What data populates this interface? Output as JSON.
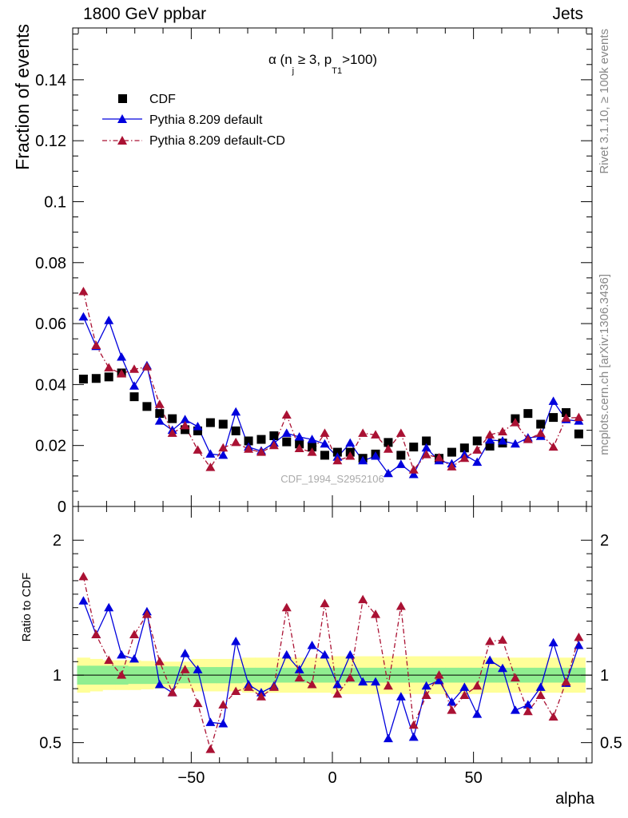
{
  "header": {
    "left": "1800 GeV ppbar",
    "right": "Jets"
  },
  "side_labels": {
    "rivet": "Rivet 3.1.10, ≥ 100k events",
    "mcplots": "mcplots.cern.ch [arXiv:1306.3436]"
  },
  "watermark": "CDF_1994_S2952106",
  "main_title": {
    "prefix": "α (n",
    "sub_j": "j",
    "mid": " ≥ 3, p",
    "sub_t1": "T1",
    "suffix": ">100)"
  },
  "legend": [
    "CDF",
    "Pythia 8.209 default",
    "Pythia 8.209 default-CD"
  ],
  "colors": {
    "data": "#000000",
    "default": "#0000dd",
    "cd": "#aa1133",
    "band_inner": "#90ee90",
    "band_outer": "#ffff99"
  },
  "chart_data": [
    {
      "type": "scatter",
      "panel": "main",
      "ylabel": "Fraction of events",
      "xlim": [
        -92,
        92
      ],
      "ylim": [
        0,
        0.157
      ],
      "yticks": [
        0,
        0.02,
        0.04,
        0.06,
        0.08,
        0.1,
        0.12,
        0.14
      ],
      "ytick_labels": [
        "0",
        "0.02",
        "0.04",
        "0.06",
        "0.08",
        "0.1",
        "0.12",
        "0.14"
      ],
      "x": [
        -88.2,
        -83.7,
        -79.2,
        -74.7,
        -70.2,
        -65.7,
        -61.2,
        -56.7,
        -52.2,
        -47.7,
        -43.2,
        -38.7,
        -34.2,
        -29.7,
        -25.2,
        -20.7,
        -16.2,
        -11.7,
        -7.2,
        -2.7,
        1.8,
        6.3,
        10.8,
        15.3,
        19.8,
        24.3,
        28.8,
        33.3,
        37.8,
        42.3,
        46.8,
        51.3,
        55.8,
        60.3,
        64.8,
        69.3,
        73.8,
        78.3,
        82.8,
        87.3
      ],
      "series": [
        {
          "name": "CDF",
          "style": "markers",
          "values": [
            0.0418,
            0.042,
            0.0425,
            0.0438,
            0.036,
            0.0328,
            0.0305,
            0.0288,
            0.0252,
            0.0248,
            0.0275,
            0.027,
            0.0248,
            0.0215,
            0.022,
            0.0232,
            0.0212,
            0.0205,
            0.0195,
            0.0168,
            0.0178,
            0.0178,
            0.0158,
            0.0172,
            0.021,
            0.0168,
            0.0195,
            0.0215,
            0.0158,
            0.0178,
            0.0192,
            0.0215,
            0.0198,
            0.0208,
            0.0288,
            0.0305,
            0.027,
            0.0292,
            0.0308,
            0.0238
          ]
        },
        {
          "name": "Pythia 8.209 default",
          "style": "line",
          "values": [
            0.0622,
            0.0525,
            0.061,
            0.049,
            0.0395,
            0.0462,
            0.028,
            0.025,
            0.0285,
            0.0262,
            0.0172,
            0.0168,
            0.031,
            0.0195,
            0.0182,
            0.0208,
            0.024,
            0.0228,
            0.022,
            0.0205,
            0.0162,
            0.0208,
            0.015,
            0.0165,
            0.0108,
            0.0138,
            0.0105,
            0.0192,
            0.015,
            0.014,
            0.017,
            0.0145,
            0.0218,
            0.0215,
            0.0205,
            0.0225,
            0.023,
            0.0345,
            0.0285,
            0.028
          ]
        },
        {
          "name": "Pythia 8.209 default-CD",
          "style": "dashdot",
          "values": [
            0.0705,
            0.0528,
            0.0455,
            0.0435,
            0.045,
            0.0458,
            0.0335,
            0.024,
            0.0265,
            0.0185,
            0.0128,
            0.0192,
            0.021,
            0.0188,
            0.0178,
            0.02,
            0.03,
            0.019,
            0.0178,
            0.024,
            0.015,
            0.0165,
            0.024,
            0.0235,
            0.0188,
            0.024,
            0.012,
            0.017,
            0.016,
            0.013,
            0.0158,
            0.0185,
            0.0235,
            0.0245,
            0.0275,
            0.022,
            0.024,
            0.0195,
            0.029,
            0.0292
          ]
        }
      ]
    },
    {
      "type": "line",
      "panel": "ratio",
      "xlabel": "alpha",
      "ylabel": "Ratio to CDF",
      "xlim": [
        -92,
        92
      ],
      "ylim": [
        0.35,
        2.25
      ],
      "yticks": [
        0.5,
        1,
        2
      ],
      "ytick_labels": [
        "0.5",
        "1",
        "2"
      ],
      "xticks": [
        -50,
        0,
        50
      ],
      "xtick_labels": [
        "−50",
        "0",
        "50"
      ],
      "band_inner": [
        0.93,
        0.93,
        0.93,
        0.93,
        0.935,
        0.935,
        0.935,
        0.935,
        0.94,
        0.94,
        0.94,
        0.94,
        0.94,
        0.945,
        0.945,
        0.945,
        0.945,
        0.945,
        0.945,
        0.945,
        0.945,
        0.945,
        0.945,
        0.945,
        0.945,
        0.945,
        0.945,
        0.945,
        0.945,
        0.945,
        0.945,
        0.945,
        0.945,
        0.945,
        0.945,
        0.945,
        0.945,
        0.945,
        0.945,
        0.945
      ],
      "band_inner_hi": [
        1.07,
        1.07,
        1.07,
        1.07,
        1.065,
        1.065,
        1.065,
        1.065,
        1.06,
        1.06,
        1.06,
        1.06,
        1.06,
        1.055,
        1.055,
        1.055,
        1.055,
        1.055,
        1.055,
        1.055,
        1.055,
        1.055,
        1.055,
        1.055,
        1.055,
        1.055,
        1.055,
        1.055,
        1.055,
        1.055,
        1.055,
        1.055,
        1.055,
        1.055,
        1.055,
        1.055,
        1.055,
        1.055,
        1.055,
        1.055
      ],
      "band_outer_lo": [
        0.87,
        0.88,
        0.89,
        0.89,
        0.89,
        0.895,
        0.9,
        0.9,
        0.9,
        0.88,
        0.88,
        0.88,
        0.88,
        0.87,
        0.87,
        0.87,
        0.87,
        0.87,
        0.87,
        0.87,
        0.86,
        0.86,
        0.86,
        0.86,
        0.86,
        0.86,
        0.86,
        0.86,
        0.86,
        0.86,
        0.86,
        0.86,
        0.87,
        0.87,
        0.87,
        0.87,
        0.87,
        0.87,
        0.87,
        0.87
      ],
      "band_outer_hi": [
        1.13,
        1.12,
        1.11,
        1.11,
        1.11,
        1.105,
        1.1,
        1.1,
        1.1,
        1.12,
        1.12,
        1.12,
        1.12,
        1.13,
        1.13,
        1.13,
        1.13,
        1.13,
        1.13,
        1.13,
        1.14,
        1.14,
        1.14,
        1.14,
        1.14,
        1.14,
        1.14,
        1.14,
        1.14,
        1.14,
        1.14,
        1.14,
        1.13,
        1.13,
        1.13,
        1.13,
        1.13,
        1.13,
        1.13,
        1.13
      ],
      "series": [
        {
          "name": "Pythia 8.209 default",
          "style": "line",
          "values": [
            1.55,
            1.3,
            1.5,
            1.15,
            1.12,
            1.47,
            0.93,
            0.87,
            1.16,
            1.04,
            0.65,
            0.64,
            1.25,
            0.93,
            0.87,
            0.92,
            1.15,
            1.04,
            1.22,
            1.15,
            0.93,
            1.15,
            0.95,
            0.95,
            0.53,
            0.84,
            0.54,
            0.92,
            0.96,
            0.8,
            0.91,
            0.71,
            1.11,
            1.05,
            0.74,
            0.78,
            0.91,
            1.24,
            0.94,
            1.22
          ]
        },
        {
          "name": "Pythia 8.209 default-CD",
          "style": "dashdot",
          "values": [
            1.73,
            1.3,
            1.11,
            1.0,
            1.3,
            1.45,
            1.1,
            0.87,
            1.04,
            0.79,
            0.45,
            0.78,
            0.88,
            0.91,
            0.84,
            0.91,
            1.5,
            0.98,
            0.93,
            1.53,
            0.86,
            0.98,
            1.56,
            1.45,
            0.92,
            1.51,
            0.63,
            0.85,
            1.0,
            0.74,
            0.85,
            0.92,
            1.25,
            1.26,
            0.98,
            0.73,
            0.85,
            0.69,
            0.95,
            1.28
          ]
        }
      ]
    }
  ]
}
